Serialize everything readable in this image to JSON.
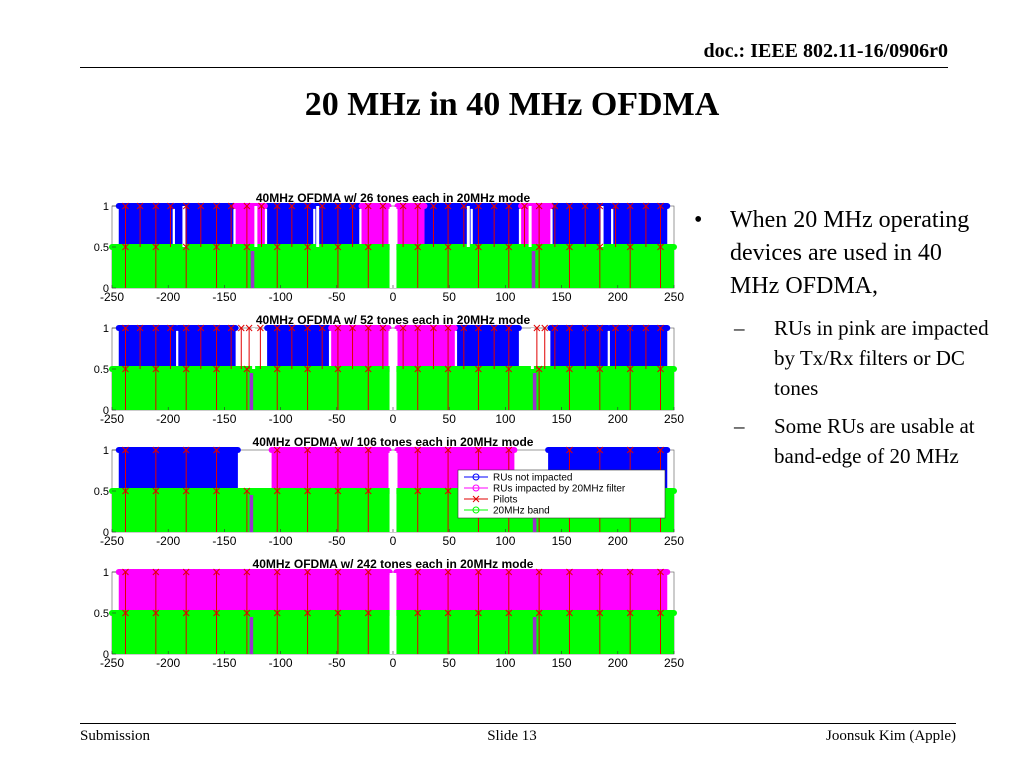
{
  "header": {
    "doc_id": "doc.: IEEE 802.11-16/0906r0"
  },
  "slide_title": "20 MHz in 40 MHz OFDMA",
  "bullets": {
    "main": "When 20 MHz operating devices are used in 40 MHz OFDMA,",
    "subs": [
      "RUs in pink are impacted by Tx/Rx filters or DC tones",
      "Some RUs are usable at band-edge of 20 MHz"
    ]
  },
  "footer": {
    "left": "Submission",
    "center": "Slide 13",
    "right": "Joonsuk Kim (Apple)"
  },
  "colors": {
    "blue": "#0000ff",
    "pink": "#ff00ff",
    "green": "#00ff00",
    "red": "#e00000",
    "purple": "#9933cc"
  },
  "chart_data": [
    {
      "type": "bar",
      "title": "40MHz OFDMA w/ 26 tones each in 20MHz mode",
      "xlim": [
        -250,
        250
      ],
      "ylim": [
        0,
        1
      ],
      "xticks": [
        "-250",
        "-200",
        "-150",
        "-100",
        "-50",
        "0",
        "50",
        "100",
        "150",
        "200",
        "250"
      ],
      "yticks": [
        "0",
        "0.5",
        "1"
      ],
      "series": [
        {
          "name": "RUs not impacted",
          "value": 1,
          "segments": [
            [
              -244,
              -196
            ],
            [
              -194,
              -142
            ],
            [
              -112,
              -71
            ],
            [
              -69,
              -30
            ],
            [
              28,
              69
            ],
            [
              71,
              112
            ],
            [
              142,
              194
            ],
            [
              196,
              244
            ]
          ]
        },
        {
          "name": "RUs impacted by 20MHz filter",
          "value": 1,
          "segments": [
            [
              -140,
              -114
            ],
            [
              -28,
              -4
            ],
            [
              4,
              28
            ],
            [
              114,
              140
            ]
          ]
        },
        {
          "name": "20MHz band",
          "value": 0.5,
          "segments": [
            [
              -250,
              -3
            ],
            [
              3,
              250
            ]
          ]
        }
      ],
      "pilots": [
        -238,
        -225,
        -211,
        -198,
        -184,
        -171,
        -157,
        -144,
        -130,
        -117,
        -103,
        -90,
        -76,
        -63,
        -49,
        -36,
        -22,
        -9,
        9,
        22,
        36,
        49,
        63,
        76,
        90,
        103,
        117,
        130,
        144,
        157,
        171,
        184,
        198,
        211,
        225,
        238
      ],
      "lower_pilots": [
        -238,
        -211,
        -184,
        -157,
        -130,
        -103,
        -76,
        -49,
        -22,
        22,
        49,
        76,
        103,
        130,
        157,
        184,
        211,
        238
      ],
      "nulls": [
        -186,
        -122,
        -67,
        67,
        122,
        186
      ],
      "filter_marks": [
        -125,
        125
      ]
    },
    {
      "type": "bar",
      "title": "40MHz OFDMA w/ 52 tones each in 20MHz mode",
      "xlim": [
        -250,
        250
      ],
      "ylim": [
        0,
        1
      ],
      "xticks": [
        "-250",
        "-200",
        "-150",
        "-100",
        "-50",
        "0",
        "50",
        "100",
        "150",
        "200",
        "250"
      ],
      "yticks": [
        "0",
        "0.5",
        "1"
      ],
      "series": [
        {
          "name": "RUs not impacted",
          "value": 1,
          "segments": [
            [
              -244,
              -193
            ],
            [
              -191,
              -140
            ],
            [
              -112,
              -57
            ],
            [
              57,
              112
            ],
            [
              140,
              191
            ],
            [
              193,
              244
            ]
          ]
        },
        {
          "name": "RUs impacted by 20MHz filter",
          "value": 1,
          "segments": [
            [
              -55,
              -4
            ],
            [
              4,
              55
            ]
          ]
        },
        {
          "name": "20MHz band",
          "value": 0.5,
          "segments": [
            [
              -250,
              -3
            ],
            [
              3,
              250
            ]
          ]
        }
      ],
      "pilots": [
        -238,
        -225,
        -211,
        -198,
        -184,
        -171,
        -157,
        -144,
        -103,
        -90,
        -76,
        -63,
        -49,
        -36,
        -22,
        -9,
        9,
        22,
        36,
        49,
        63,
        76,
        90,
        103,
        144,
        157,
        171,
        184,
        198,
        211,
        225,
        238
      ],
      "lower_pilots": [
        -238,
        -211,
        -184,
        -157,
        -130,
        -103,
        -76,
        -49,
        -22,
        22,
        49,
        76,
        103,
        130,
        157,
        184,
        211,
        238
      ],
      "unused_pilots": [
        -135,
        -128,
        -118,
        128,
        135
      ],
      "nulls": [
        -124,
        124
      ],
      "filter_marks": [
        -126,
        126
      ]
    },
    {
      "type": "bar",
      "title": "40MHz OFDMA w/ 106 tones each in 20MHz mode",
      "xlim": [
        -250,
        250
      ],
      "ylim": [
        0,
        1
      ],
      "xticks": [
        "-250",
        "-200",
        "-150",
        "-100",
        "-50",
        "0",
        "50",
        "100",
        "150",
        "200",
        "250"
      ],
      "yticks": [
        "0",
        "0.5",
        "1"
      ],
      "series": [
        {
          "name": "RUs not impacted",
          "value": 1,
          "segments": [
            [
              -244,
              -138
            ],
            [
              138,
              244
            ]
          ]
        },
        {
          "name": "RUs impacted by 20MHz filter",
          "value": 1,
          "segments": [
            [
              -108,
              -4
            ],
            [
              4,
              108
            ]
          ]
        },
        {
          "name": "20MHz band",
          "value": 0.5,
          "segments": [
            [
              -250,
              -3
            ],
            [
              3,
              250
            ]
          ]
        }
      ],
      "pilots": [
        -238,
        -211,
        -184,
        -157,
        -103,
        -76,
        -49,
        -22,
        22,
        49,
        76,
        103,
        157,
        184,
        211,
        238
      ],
      "lower_pilots": [
        -238,
        -211,
        -184,
        -157,
        -130,
        -103,
        -76,
        -49,
        -22,
        22,
        49,
        76,
        103,
        130,
        157,
        184,
        211,
        238
      ],
      "nulls": [],
      "filter_marks": [
        -126,
        126
      ]
    },
    {
      "type": "bar",
      "title": "40MHz OFDMA w/ 242 tones each in 20MHz mode",
      "xlim": [
        -250,
        250
      ],
      "ylim": [
        0,
        1
      ],
      "xticks": [
        "-250",
        "-200",
        "-150",
        "-100",
        "-50",
        "0",
        "50",
        "100",
        "150",
        "200",
        "250"
      ],
      "yticks": [
        "0",
        "0.5",
        "1"
      ],
      "series": [
        {
          "name": "RUs impacted by 20MHz filter",
          "value": 1,
          "segments": [
            [
              -244,
              -3
            ],
            [
              3,
              244
            ]
          ]
        },
        {
          "name": "20MHz band",
          "value": 0.5,
          "segments": [
            [
              -250,
              -3
            ],
            [
              3,
              250
            ]
          ]
        }
      ],
      "pilots": [
        -238,
        -211,
        -184,
        -157,
        -130,
        -103,
        -76,
        -49,
        -22,
        22,
        49,
        76,
        103,
        130,
        157,
        184,
        211,
        238
      ],
      "lower_pilots": [
        -238,
        -211,
        -184,
        -157,
        -130,
        -103,
        -76,
        -49,
        -22,
        22,
        49,
        76,
        103,
        130,
        157,
        184,
        211,
        238
      ],
      "nulls": [],
      "filter_marks": [
        -126,
        126
      ]
    }
  ],
  "legend": {
    "location": "inside-right",
    "entries": [
      {
        "label": "RUs not impacted",
        "marker": "circle",
        "color": "#0000ff"
      },
      {
        "label": "RUs impacted by 20MHz filter",
        "marker": "circle",
        "color": "#ff00ff"
      },
      {
        "label": "Pilots",
        "marker": "x",
        "color": "#e00000"
      },
      {
        "label": "20MHz band",
        "marker": "circle",
        "color": "#00ff00"
      }
    ]
  }
}
